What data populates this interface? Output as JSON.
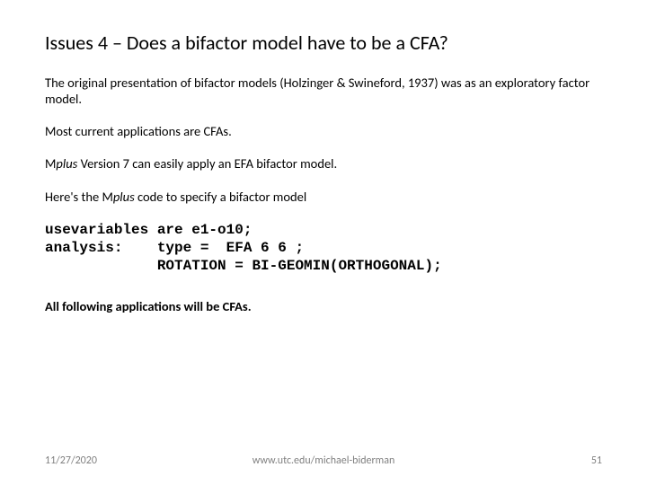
{
  "title": "Issues 4 – Does a bifactor model have to be a CFA?",
  "para1": "The original presentation of bifactor models (Holzinger & Swineford, 1937) was as an exploratory factor model.",
  "para2": "Most current applications are CFAs.",
  "para3a": "M",
  "para3b": "plus",
  "para3c": " Version 7 can easily apply an EFA bifactor model.",
  "para4a": "Here's the M",
  "para4b": "plus",
  "para4c": "  code to specify a bifactor model",
  "code": "usevariables are e1-o10;\nanalysis:    type =  EFA 6 6 ;\n             ROTATION = BI-GEOMIN(ORTHOGONAL);",
  "para5": "All following applications will be CFAs.",
  "footer": {
    "date": "11/27/2020",
    "url": "www.utc.edu/michael-biderman",
    "page": "51"
  }
}
